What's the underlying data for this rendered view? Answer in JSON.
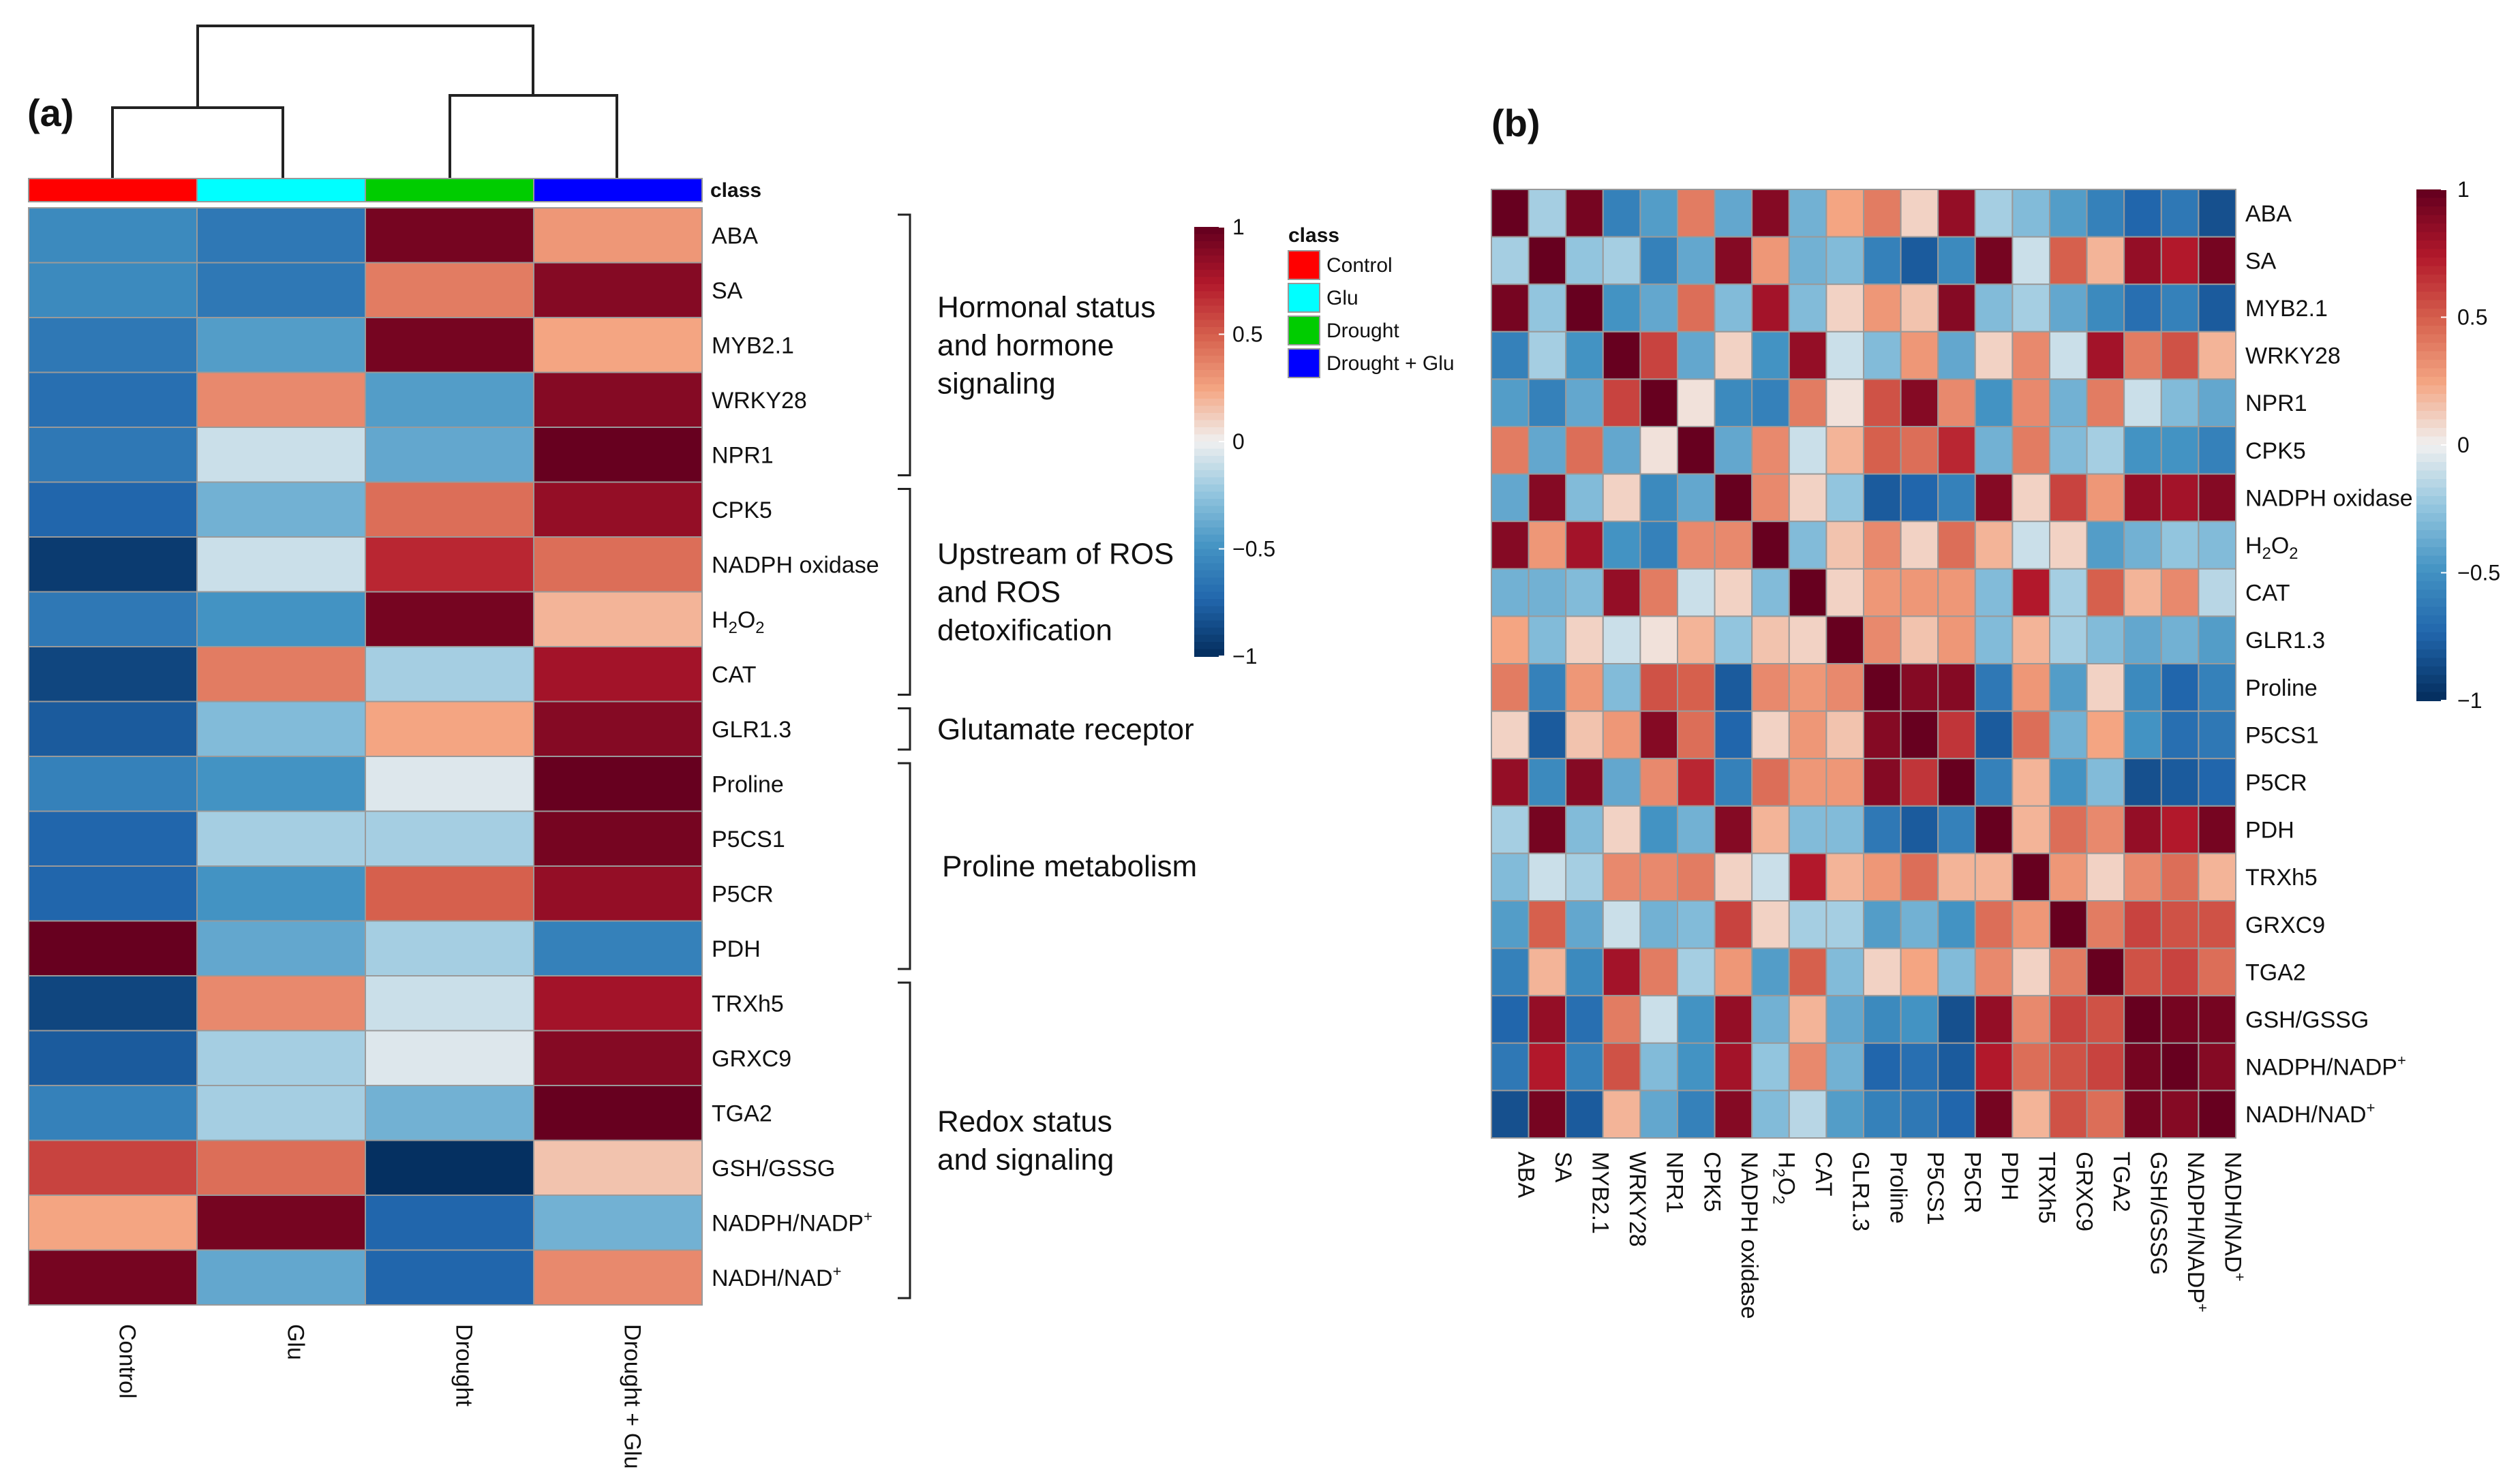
{
  "chart_data": [
    {
      "type": "heatmap",
      "panel_label": "(a)",
      "columns": [
        "Control",
        "Glu",
        "Drought",
        "Drought + Glu"
      ],
      "class_title": "class",
      "class_colors": [
        "#ff0000",
        "#00ffff",
        "#00cc00",
        "#0000ff"
      ],
      "rows": [
        "ABA",
        "SA",
        "MYB2.1",
        "WRKY28",
        "NPR1",
        "CPK5",
        "NADPH oxidase",
        "H2O2",
        "CAT",
        "GLR1.3",
        "Proline",
        "P5CS1",
        "P5CR",
        "PDH",
        "TRXh5",
        "GRXC9",
        "TGA2",
        "GSH/GSSG",
        "NADPH/NADP+",
        "NADH/NAD+"
      ],
      "row_labels": [
        {
          "main": "ABA"
        },
        {
          "main": "SA"
        },
        {
          "main": "MYB2.1"
        },
        {
          "main": "WRKY28"
        },
        {
          "main": "NPR1"
        },
        {
          "main": "CPK5"
        },
        {
          "main": "NADPH oxidase"
        },
        {
          "main": "H",
          "s1": "2",
          "m2": "O",
          "s2": "2"
        },
        {
          "main": "CAT"
        },
        {
          "main": "GLR1.3"
        },
        {
          "main": "Proline"
        },
        {
          "main": "P5CS1"
        },
        {
          "main": "P5CR"
        },
        {
          "main": "PDH"
        },
        {
          "main": "TRXh5"
        },
        {
          "main": "GRXC9"
        },
        {
          "main": "TGA2"
        },
        {
          "main": "GSH/GSSG"
        },
        {
          "main": "NADPH/NADP",
          "sup": "+"
        },
        {
          "main": "NADH/NAD",
          "sup": "+"
        }
      ],
      "values": [
        [
          -0.55,
          -0.65,
          0.95,
          0.3
        ],
        [
          -0.55,
          -0.65,
          0.4,
          0.9
        ],
        [
          -0.65,
          -0.45,
          0.95,
          0.25
        ],
        [
          -0.7,
          0.35,
          -0.45,
          0.9
        ],
        [
          -0.65,
          -0.1,
          -0.4,
          1.0
        ],
        [
          -0.75,
          -0.35,
          0.45,
          0.85
        ],
        [
          -0.95,
          -0.1,
          0.7,
          0.45
        ],
        [
          -0.65,
          -0.5,
          0.95,
          0.2
        ],
        [
          -0.9,
          0.4,
          -0.2,
          0.8
        ],
        [
          -0.8,
          -0.3,
          0.25,
          0.9
        ],
        [
          -0.6,
          -0.5,
          -0.05,
          1.0
        ],
        [
          -0.75,
          -0.2,
          -0.2,
          0.95
        ],
        [
          -0.75,
          -0.5,
          0.5,
          0.85
        ],
        [
          1.0,
          -0.4,
          -0.2,
          -0.6
        ],
        [
          -0.9,
          0.35,
          -0.1,
          0.8
        ],
        [
          -0.8,
          -0.2,
          -0.05,
          0.9
        ],
        [
          -0.6,
          -0.2,
          -0.35,
          1.0
        ],
        [
          0.6,
          0.45,
          -1.0,
          0.15
        ],
        [
          0.25,
          0.95,
          -0.75,
          -0.35
        ],
        [
          0.95,
          -0.4,
          -0.75,
          0.35
        ]
      ],
      "groups": [
        {
          "lines": [
            "Hormonal status",
            "and  hormone",
            "signaling"
          ]
        },
        {
          "lines": [
            "Upstream of ROS",
            "and ROS",
            "detoxification"
          ]
        },
        {
          "lines": [
            "Glutamate receptor"
          ]
        },
        {
          "lines": [
            "Proline metabolism"
          ]
        },
        {
          "lines": [
            "Redox status",
            "and signaling"
          ]
        }
      ],
      "colorbar": {
        "ticks": [
          "1",
          "0.5",
          "0",
          "−0.5",
          "−1"
        ],
        "range": [
          -1,
          1
        ]
      },
      "legend": {
        "title": "class",
        "items": [
          "Control",
          "Glu",
          "Drought",
          "Drought + Glu"
        ]
      }
    },
    {
      "type": "heatmap",
      "panel_label": "(b)",
      "variables": [
        "ABA",
        "SA",
        "MYB2.1",
        "WRKY28",
        "NPR1",
        "CPK5",
        "NADPH oxidase",
        "H2O2",
        "CAT",
        "GLR1.3",
        "Proline",
        "P5CS1",
        "P5CR",
        "PDH",
        "TRXh5",
        "GRXC9",
        "TGA2",
        "GSH/GSSG",
        "NADPH/NADP+",
        "NADH/NAD+"
      ],
      "colorbar": {
        "ticks": [
          "1",
          "0.5",
          "0",
          "−0.5",
          "−1"
        ],
        "range": [
          -1,
          1
        ]
      },
      "values": [
        [
          1,
          -0.2,
          0.95,
          -0.6,
          -0.45,
          0.4,
          -0.4,
          0.9,
          -0.35,
          0.25,
          0.4,
          0.1,
          0.85,
          -0.2,
          -0.3,
          -0.45,
          -0.6,
          -0.75,
          -0.65,
          -0.85
        ],
        [
          -0.2,
          1,
          -0.25,
          -0.2,
          -0.6,
          -0.4,
          0.9,
          0.3,
          -0.35,
          -0.3,
          -0.6,
          -0.8,
          -0.55,
          0.95,
          -0.1,
          0.5,
          0.2,
          0.85,
          0.75,
          0.95
        ],
        [
          0.95,
          -0.25,
          1,
          -0.5,
          -0.4,
          0.45,
          -0.3,
          0.8,
          -0.3,
          0.1,
          0.3,
          0.15,
          0.9,
          -0.3,
          -0.2,
          -0.4,
          -0.55,
          -0.7,
          -0.6,
          -0.8
        ],
        [
          -0.6,
          -0.2,
          -0.5,
          1,
          0.6,
          -0.4,
          0.1,
          -0.5,
          0.85,
          -0.1,
          -0.3,
          0.3,
          -0.4,
          0.1,
          0.35,
          -0.1,
          0.8,
          0.4,
          0.55,
          0.2
        ],
        [
          -0.45,
          -0.6,
          -0.4,
          0.6,
          1,
          0.05,
          -0.55,
          -0.6,
          0.4,
          0.05,
          0.55,
          0.9,
          0.35,
          -0.5,
          0.35,
          -0.35,
          0.4,
          -0.1,
          -0.3,
          -0.4
        ],
        [
          0.4,
          -0.4,
          0.45,
          -0.4,
          0.05,
          1,
          -0.4,
          0.35,
          -0.1,
          0.2,
          0.5,
          0.45,
          0.7,
          -0.35,
          0.4,
          -0.3,
          -0.2,
          -0.5,
          -0.5,
          -0.6
        ],
        [
          -0.4,
          0.9,
          -0.3,
          0.1,
          -0.55,
          -0.4,
          1,
          0.35,
          0.1,
          -0.25,
          -0.8,
          -0.75,
          -0.6,
          0.9,
          0.1,
          0.6,
          0.3,
          0.85,
          0.8,
          0.9
        ],
        [
          0.9,
          0.3,
          0.8,
          -0.5,
          -0.6,
          0.35,
          0.35,
          1,
          -0.3,
          0.15,
          0.35,
          0.1,
          0.45,
          0.2,
          -0.1,
          0.1,
          -0.45,
          -0.35,
          -0.25,
          -0.3
        ],
        [
          -0.35,
          -0.35,
          -0.3,
          0.85,
          0.4,
          -0.1,
          0.1,
          -0.3,
          1,
          0.1,
          0.3,
          0.3,
          0.3,
          -0.3,
          0.75,
          -0.2,
          0.5,
          0.2,
          0.35,
          -0.15
        ],
        [
          0.25,
          -0.3,
          0.1,
          -0.1,
          0.05,
          0.2,
          -0.25,
          0.15,
          0.1,
          1,
          0.35,
          0.15,
          0.3,
          -0.3,
          0.2,
          -0.2,
          -0.3,
          -0.4,
          -0.35,
          -0.45
        ],
        [
          0.4,
          -0.6,
          0.3,
          -0.3,
          0.55,
          0.5,
          -0.8,
          0.35,
          0.3,
          0.35,
          1,
          0.9,
          0.9,
          -0.65,
          0.3,
          -0.45,
          0.1,
          -0.55,
          -0.75,
          -0.6
        ],
        [
          0.1,
          -0.8,
          0.15,
          0.3,
          0.9,
          0.45,
          -0.75,
          0.1,
          0.3,
          0.15,
          0.9,
          1,
          0.65,
          -0.8,
          0.45,
          -0.35,
          0.25,
          -0.5,
          -0.7,
          -0.65
        ],
        [
          0.85,
          -0.55,
          0.9,
          -0.4,
          0.35,
          0.7,
          -0.6,
          0.45,
          0.3,
          0.3,
          0.9,
          0.65,
          1,
          -0.6,
          0.2,
          -0.5,
          -0.3,
          -0.85,
          -0.8,
          -0.75
        ],
        [
          -0.2,
          0.95,
          -0.3,
          0.1,
          -0.5,
          -0.35,
          0.9,
          0.2,
          -0.3,
          -0.3,
          -0.65,
          -0.8,
          -0.6,
          1,
          0.2,
          0.45,
          0.35,
          0.85,
          0.75,
          0.95
        ],
        [
          -0.3,
          -0.1,
          -0.2,
          0.35,
          0.35,
          0.4,
          0.1,
          -0.1,
          0.75,
          0.2,
          0.3,
          0.45,
          0.2,
          0.2,
          1,
          0.3,
          0.1,
          0.35,
          0.45,
          0.2
        ],
        [
          -0.45,
          0.5,
          -0.4,
          -0.1,
          -0.35,
          -0.3,
          0.6,
          0.1,
          -0.2,
          -0.2,
          -0.45,
          -0.35,
          -0.5,
          0.45,
          0.3,
          1,
          0.4,
          0.6,
          0.55,
          0.55
        ],
        [
          -0.6,
          0.2,
          -0.55,
          0.8,
          0.4,
          -0.2,
          0.3,
          -0.45,
          0.5,
          -0.3,
          0.1,
          0.25,
          -0.3,
          0.35,
          0.1,
          0.4,
          1,
          0.55,
          0.6,
          0.45
        ],
        [
          -0.75,
          0.85,
          -0.7,
          0.4,
          -0.1,
          -0.5,
          0.85,
          -0.35,
          0.2,
          -0.4,
          -0.55,
          -0.5,
          -0.85,
          0.85,
          0.35,
          0.6,
          0.55,
          1,
          0.95,
          0.95
        ],
        [
          -0.65,
          0.75,
          -0.6,
          0.55,
          -0.3,
          -0.5,
          0.8,
          -0.25,
          0.35,
          -0.35,
          -0.75,
          -0.7,
          -0.8,
          0.75,
          0.45,
          0.55,
          0.6,
          0.95,
          1,
          0.9
        ],
        [
          -0.85,
          0.95,
          -0.8,
          0.2,
          -0.4,
          -0.6,
          0.9,
          -0.3,
          -0.15,
          -0.45,
          -0.6,
          -0.65,
          -0.75,
          0.95,
          0.2,
          0.55,
          0.45,
          0.95,
          0.9,
          1
        ]
      ]
    }
  ]
}
